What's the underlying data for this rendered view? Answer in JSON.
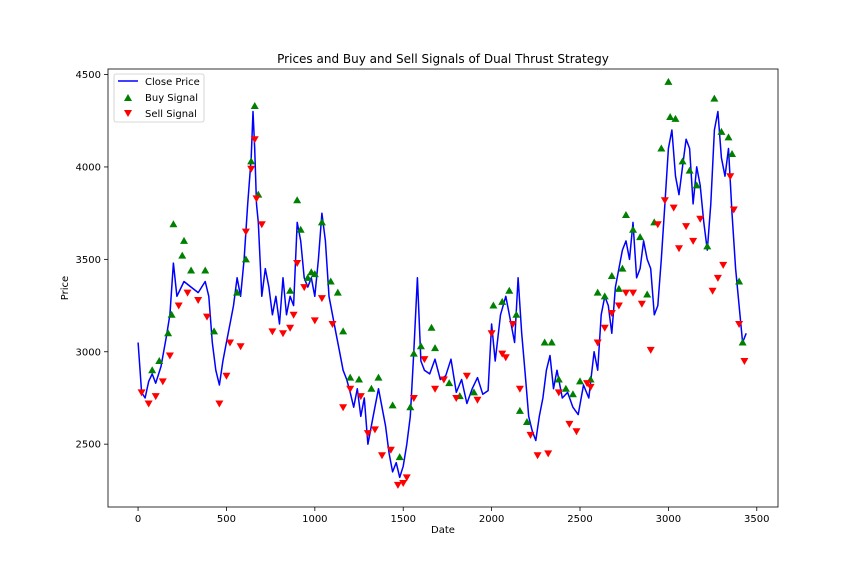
{
  "chart_data": {
    "type": "line",
    "title": "Prices and Buy and Sell Signals of Dual Thrust Strategy",
    "xlabel": "Date",
    "ylabel": "Price",
    "xlim": [
      -170,
      3620
    ],
    "ylim": [
      2160,
      4530
    ],
    "x_ticks": [
      0,
      500,
      1000,
      1500,
      2000,
      2500,
      3000,
      3500
    ],
    "y_ticks": [
      2500,
      3000,
      3500,
      4000,
      4500
    ],
    "grid": false,
    "legend_position": "top-left",
    "colors": {
      "close": "#0000ff",
      "buy": "#008000",
      "sell": "#ff0000"
    },
    "series": [
      {
        "name": "Close Price",
        "kind": "line",
        "x": [
          0,
          20,
          40,
          60,
          80,
          100,
          130,
          160,
          180,
          200,
          220,
          260,
          300,
          340,
          380,
          400,
          420,
          440,
          460,
          480,
          500,
          520,
          540,
          560,
          580,
          600,
          620,
          640,
          650,
          660,
          670,
          680,
          700,
          720,
          740,
          760,
          780,
          800,
          820,
          840,
          860,
          880,
          900,
          920,
          940,
          960,
          980,
          1000,
          1020,
          1040,
          1060,
          1080,
          1100,
          1120,
          1140,
          1160,
          1180,
          1200,
          1220,
          1240,
          1260,
          1280,
          1300,
          1320,
          1340,
          1360,
          1380,
          1400,
          1420,
          1440,
          1460,
          1480,
          1500,
          1520,
          1540,
          1560,
          1580,
          1600,
          1620,
          1650,
          1680,
          1710,
          1740,
          1770,
          1800,
          1830,
          1860,
          1890,
          1920,
          1950,
          1980,
          2000,
          2020,
          2050,
          2080,
          2110,
          2130,
          2150,
          2170,
          2190,
          2210,
          2230,
          2250,
          2270,
          2290,
          2310,
          2330,
          2350,
          2370,
          2400,
          2430,
          2460,
          2490,
          2520,
          2550,
          2580,
          2600,
          2620,
          2640,
          2660,
          2680,
          2700,
          2720,
          2740,
          2760,
          2780,
          2800,
          2820,
          2840,
          2860,
          2880,
          2900,
          2920,
          2940,
          2960,
          2980,
          3000,
          3020,
          3040,
          3060,
          3080,
          3100,
          3120,
          3140,
          3160,
          3180,
          3200,
          3220,
          3240,
          3260,
          3280,
          3300,
          3320,
          3340,
          3360,
          3380,
          3400,
          3420,
          3440
        ],
        "y": [
          3050,
          2780,
          2750,
          2840,
          2880,
          2830,
          2920,
          3080,
          3200,
          3480,
          3300,
          3380,
          3350,
          3320,
          3380,
          3300,
          3050,
          2900,
          2820,
          2950,
          3050,
          3150,
          3250,
          3400,
          3300,
          3500,
          3800,
          4050,
          4300,
          4100,
          3800,
          3700,
          3300,
          3450,
          3350,
          3200,
          3300,
          3150,
          3400,
          3200,
          3300,
          3250,
          3700,
          3600,
          3400,
          3350,
          3400,
          3300,
          3500,
          3750,
          3600,
          3300,
          3200,
          3100,
          3000,
          2900,
          2850,
          2780,
          2700,
          2800,
          2650,
          2750,
          2500,
          2600,
          2700,
          2800,
          2700,
          2600,
          2450,
          2350,
          2400,
          2320,
          2380,
          2500,
          2650,
          3000,
          3400,
          2950,
          2900,
          2880,
          2960,
          2850,
          2870,
          2960,
          2780,
          2850,
          2720,
          2800,
          2860,
          2770,
          2790,
          3150,
          2950,
          3200,
          3300,
          3150,
          3050,
          3400,
          3100,
          2880,
          2650,
          2570,
          2520,
          2650,
          2750,
          2900,
          2980,
          2800,
          2900,
          2750,
          2780,
          2700,
          2660,
          2820,
          2750,
          3000,
          2900,
          3200,
          3300,
          3250,
          3100,
          3350,
          3450,
          3550,
          3600,
          3500,
          3700,
          3400,
          3450,
          3600,
          3500,
          3450,
          3200,
          3250,
          3500,
          3800,
          4100,
          4200,
          3950,
          3850,
          4000,
          4150,
          4100,
          3800,
          4000,
          3900,
          3700,
          3550,
          3800,
          4200,
          4300,
          4050,
          3950,
          4100,
          3750,
          3450,
          3250,
          3050,
          3100
        ],
        "legend_label": "Close Price"
      },
      {
        "name": "Buy Signal",
        "kind": "scatter",
        "marker": "triangle-up",
        "x": [
          80,
          120,
          170,
          190,
          200,
          250,
          260,
          300,
          380,
          430,
          560,
          610,
          640,
          660,
          680,
          860,
          900,
          920,
          960,
          980,
          1000,
          1040,
          1090,
          1130,
          1160,
          1200,
          1250,
          1320,
          1360,
          1440,
          1480,
          1540,
          1560,
          1600,
          1660,
          1680,
          1760,
          1820,
          1900,
          2010,
          2060,
          2100,
          2140,
          2160,
          2200,
          2300,
          2340,
          2380,
          2420,
          2460,
          2500,
          2560,
          2600,
          2640,
          2680,
          2720,
          2740,
          2760,
          2800,
          2840,
          2880,
          2920,
          2960,
          3000,
          3010,
          3040,
          3080,
          3120,
          3160,
          3220,
          3260,
          3300,
          3340,
          3360,
          3400,
          3420
        ],
        "y": [
          2900,
          2950,
          3100,
          3200,
          3690,
          3520,
          3600,
          3440,
          3440,
          3110,
          3320,
          3500,
          4030,
          4330,
          3850,
          3330,
          3820,
          3660,
          3400,
          3430,
          3420,
          3700,
          3380,
          3320,
          3110,
          2860,
          2850,
          2800,
          2860,
          2710,
          2430,
          2700,
          2990,
          3030,
          3130,
          3020,
          2830,
          2760,
          2780,
          3250,
          3270,
          3330,
          3200,
          2680,
          2620,
          3050,
          3050,
          2850,
          2800,
          2770,
          2840,
          2850,
          3320,
          3300,
          3410,
          3340,
          3450,
          3740,
          3660,
          3620,
          3310,
          3700,
          4100,
          4460,
          4270,
          4260,
          4030,
          3980,
          3900,
          3570,
          4370,
          4190,
          4160,
          4070,
          3380,
          3050
        ],
        "legend_label": "Buy Signal"
      },
      {
        "name": "Sell Signal",
        "kind": "scatter",
        "marker": "triangle-down",
        "x": [
          20,
          60,
          100,
          140,
          180,
          230,
          280,
          340,
          390,
          460,
          500,
          520,
          580,
          610,
          640,
          660,
          670,
          700,
          760,
          820,
          860,
          880,
          900,
          940,
          1000,
          1040,
          1100,
          1160,
          1200,
          1260,
          1300,
          1340,
          1380,
          1430,
          1470,
          1500,
          1520,
          1560,
          1620,
          1680,
          1730,
          1800,
          1860,
          1920,
          2000,
          2060,
          2080,
          2120,
          2160,
          2220,
          2260,
          2320,
          2380,
          2440,
          2480,
          2540,
          2560,
          2600,
          2640,
          2680,
          2720,
          2760,
          2800,
          2850,
          2900,
          2940,
          2980,
          3030,
          3060,
          3100,
          3140,
          3180,
          3250,
          3280,
          3310,
          3350,
          3370,
          3400,
          3430
        ],
        "y": [
          2780,
          2720,
          2760,
          2840,
          2980,
          3250,
          3320,
          3280,
          3190,
          2720,
          2870,
          3050,
          3030,
          3650,
          3990,
          4150,
          3830,
          3690,
          3110,
          3100,
          3130,
          3200,
          3480,
          3350,
          3170,
          3290,
          3150,
          2700,
          2800,
          2760,
          2560,
          2580,
          2440,
          2470,
          2280,
          2290,
          2320,
          2750,
          2960,
          2800,
          2850,
          2750,
          2870,
          2740,
          3100,
          2990,
          2970,
          3150,
          2800,
          2550,
          2440,
          2450,
          2780,
          2610,
          2570,
          2830,
          2810,
          3050,
          3130,
          3210,
          3250,
          3320,
          3320,
          3260,
          3010,
          3690,
          3820,
          3780,
          3560,
          3680,
          3600,
          3720,
          3330,
          3400,
          3470,
          3950,
          3770,
          3150,
          2950
        ],
        "legend_label": "Sell Signal"
      }
    ]
  }
}
